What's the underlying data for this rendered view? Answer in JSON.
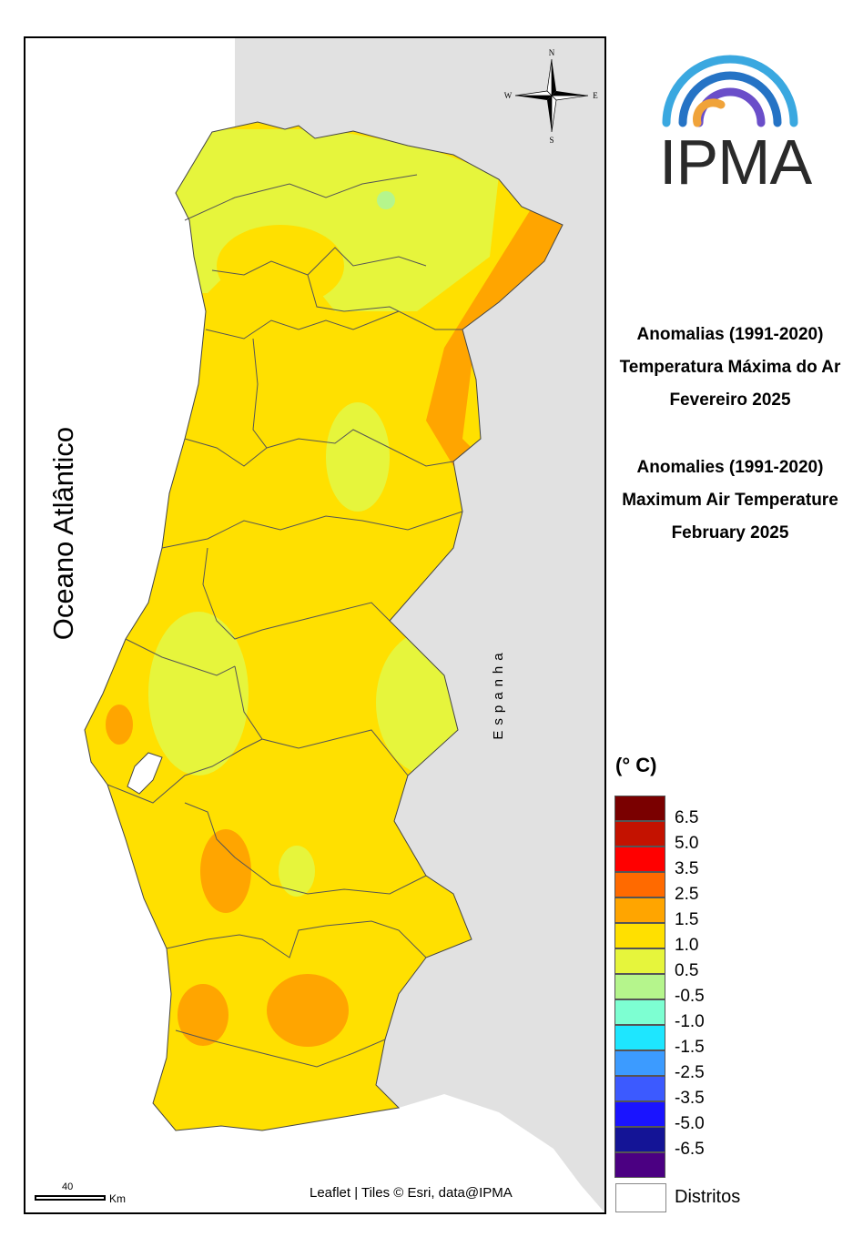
{
  "map": {
    "ocean_label": "Oceano Atlântico",
    "spain_label": "Espanha",
    "attribution": "Leaflet | Tiles © Esri, data@IPMA",
    "scale_value": "40",
    "scale_unit": "Km",
    "compass": {
      "n": "N",
      "s": "S",
      "e": "E",
      "w": "W"
    }
  },
  "logo": {
    "text": "IPMA",
    "colors": [
      "#3aa8e0",
      "#2573c5",
      "#6a4ec9",
      "#f0a33a"
    ]
  },
  "titles": {
    "pt_line1": "Anomalias (1991-2020)",
    "pt_line2": "Temperatura Máxima do Ar",
    "pt_line3": "Fevereiro 2025",
    "en_line1": "Anomalies (1991-2020)",
    "en_line2": "Maximum Air Temperature",
    "en_line3": "February 2025"
  },
  "legend": {
    "unit": "(° C)",
    "classes": [
      {
        "label": "6.5",
        "color": "#7a0000"
      },
      {
        "label": "5.0",
        "color": "#c41200"
      },
      {
        "label": "3.5",
        "color": "#ff0000"
      },
      {
        "label": "2.5",
        "color": "#ff6a00"
      },
      {
        "label": "1.5",
        "color": "#ffa500"
      },
      {
        "label": "1.0",
        "color": "#ffe000"
      },
      {
        "label": "0.5",
        "color": "#e6f53c"
      },
      {
        "label": "-0.5",
        "color": "#b5f58c"
      },
      {
        "label": "-1.0",
        "color": "#7dffd2"
      },
      {
        "label": "-1.5",
        "color": "#1ee6ff"
      },
      {
        "label": "-2.5",
        "color": "#3c9bff"
      },
      {
        "label": "-3.5",
        "color": "#3c5aff"
      },
      {
        "label": "-5.0",
        "color": "#1a14ff"
      },
      {
        "label": "-6.5",
        "color": "#141496"
      },
      {
        "label": "",
        "color": "#4b0082"
      }
    ],
    "districts_label": "Distritos"
  },
  "colors": {
    "spain": "#e1e1e1",
    "anom_high": "#ffa500",
    "anom_mid": "#ffe000",
    "anom_low": "#e6f53c",
    "anom_neg": "#b5f58c"
  }
}
